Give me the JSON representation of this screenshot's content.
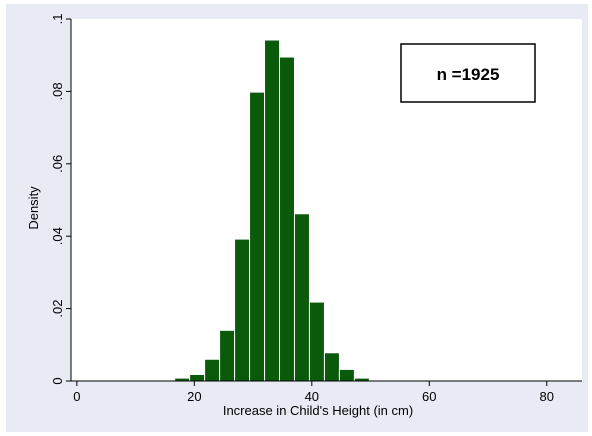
{
  "chart_data": {
    "type": "bar",
    "subtype": "histogram",
    "xlabel": "Increase in Child's Height (in cm)",
    "ylabel": "Density",
    "xlim": [
      -1,
      86
    ],
    "ylim": [
      0,
      0.1
    ],
    "xticks": [
      0,
      20,
      40,
      60,
      80
    ],
    "xtick_labels": [
      "0",
      "20",
      "40",
      "60",
      "80"
    ],
    "yticks": [
      0,
      0.02,
      0.04,
      0.06,
      0.08,
      0.1
    ],
    "ytick_labels": [
      "0",
      ".02",
      ".04",
      ".06",
      ".08",
      ".1"
    ],
    "bin_width": 2.55,
    "bins": [
      {
        "x0": 3.9,
        "value": 0.0002
      },
      {
        "x0": 6.45,
        "value": 0.0002
      },
      {
        "x0": 9.0,
        "value": 0.0002
      },
      {
        "x0": 11.55,
        "value": 0.0002
      },
      {
        "x0": 14.1,
        "value": 0.0002
      },
      {
        "x0": 16.65,
        "value": 0.0008
      },
      {
        "x0": 19.2,
        "value": 0.0018
      },
      {
        "x0": 21.75,
        "value": 0.006
      },
      {
        "x0": 24.3,
        "value": 0.014
      },
      {
        "x0": 26.85,
        "value": 0.0392
      },
      {
        "x0": 29.4,
        "value": 0.0798
      },
      {
        "x0": 31.95,
        "value": 0.0942
      },
      {
        "x0": 34.5,
        "value": 0.0895
      },
      {
        "x0": 37.05,
        "value": 0.0462
      },
      {
        "x0": 39.6,
        "value": 0.0218
      },
      {
        "x0": 42.15,
        "value": 0.0078
      },
      {
        "x0": 44.7,
        "value": 0.0032
      },
      {
        "x0": 47.25,
        "value": 0.0008
      },
      {
        "x0": 49.8,
        "value": 0.0002
      },
      {
        "x0": 52.35,
        "value": 0.0002
      },
      {
        "x0": 54.9,
        "value": 0.0002
      },
      {
        "x0": 57.45,
        "value": 0.0002
      },
      {
        "x0": 60.0,
        "value": 0.0002
      },
      {
        "x0": 62.55,
        "value": 0.0002
      },
      {
        "x0": 65.1,
        "value": 0.0002
      },
      {
        "x0": 67.65,
        "value": 0.0002
      },
      {
        "x0": 70.2,
        "value": 0.0002
      },
      {
        "x0": 72.75,
        "value": 0.0002
      },
      {
        "x0": 75.3,
        "value": 0.0002
      },
      {
        "x0": 77.85,
        "value": 0.0002
      },
      {
        "x0": 80.4,
        "value": 0.0002
      },
      {
        "x0": 82.95,
        "value": 0.0002
      }
    ],
    "bar_color": "#0b5a0b",
    "bar_edge_color": "#ffffff",
    "plot_background": "#ffffff",
    "outer_background": "#e8ebf4",
    "grid": false,
    "legend": "none",
    "annotation": {
      "text": "n =1925",
      "placement": "top-right"
    }
  }
}
